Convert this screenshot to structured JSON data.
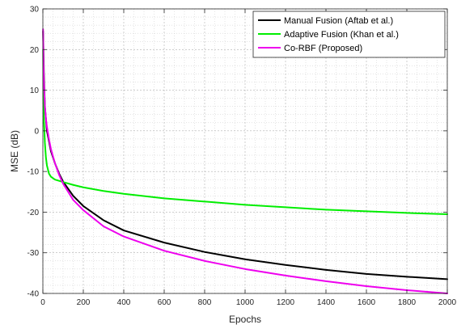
{
  "chart_data": {
    "type": "line",
    "title": "",
    "xlabel": "Epochs",
    "ylabel": "MSE (dB)",
    "xlim": [
      0,
      2000
    ],
    "ylim": [
      -40,
      30
    ],
    "xticks": [
      0,
      200,
      400,
      600,
      800,
      1000,
      1200,
      1400,
      1600,
      1800,
      2000
    ],
    "yticks": [
      -40,
      -30,
      -20,
      -10,
      0,
      10,
      20,
      30
    ],
    "grid": true,
    "minor_grid": true,
    "legend_position": "top-right",
    "series": [
      {
        "name": "Manual Fusion (Aftab et al.)",
        "color": "#000000",
        "x": [
          1,
          5,
          10,
          20,
          40,
          60,
          80,
          100,
          150,
          200,
          300,
          400,
          600,
          800,
          1000,
          1200,
          1400,
          1600,
          1800,
          2000
        ],
        "y": [
          24.5,
          14,
          6,
          0,
          -5,
          -8,
          -10.5,
          -12.5,
          -16,
          -18.5,
          -22,
          -24.5,
          -27.5,
          -29.8,
          -31.6,
          -33,
          -34.2,
          -35.2,
          -35.9,
          -36.5
        ]
      },
      {
        "name": "Adaptive Fusion (Khan et al.)",
        "color": "#00ee00",
        "x": [
          1,
          3,
          5,
          10,
          15,
          20,
          30,
          40,
          60,
          80,
          100,
          150,
          200,
          300,
          400,
          600,
          800,
          1000,
          1200,
          1400,
          1600,
          1800,
          2000
        ],
        "y": [
          20,
          9,
          3,
          -3,
          -6.5,
          -8.5,
          -10.5,
          -11.3,
          -12,
          -12.3,
          -12.6,
          -13.3,
          -13.9,
          -14.8,
          -15.5,
          -16.6,
          -17.4,
          -18.2,
          -18.8,
          -19.4,
          -19.8,
          -20.2,
          -20.5
        ]
      },
      {
        "name": "Co-RBF (Proposed)",
        "color": "#ee00ee",
        "x": [
          1,
          3,
          5,
          10,
          15,
          20,
          30,
          40,
          60,
          80,
          100,
          150,
          200,
          300,
          400,
          600,
          800,
          1000,
          1200,
          1400,
          1600,
          1800,
          2000
        ],
        "y": [
          25,
          17,
          12,
          6,
          3,
          1,
          -2,
          -4.5,
          -8,
          -10.8,
          -13,
          -17,
          -19.5,
          -23.5,
          -26,
          -29.5,
          -32,
          -34,
          -35.6,
          -37,
          -38.2,
          -39.2,
          -40
        ]
      }
    ]
  }
}
